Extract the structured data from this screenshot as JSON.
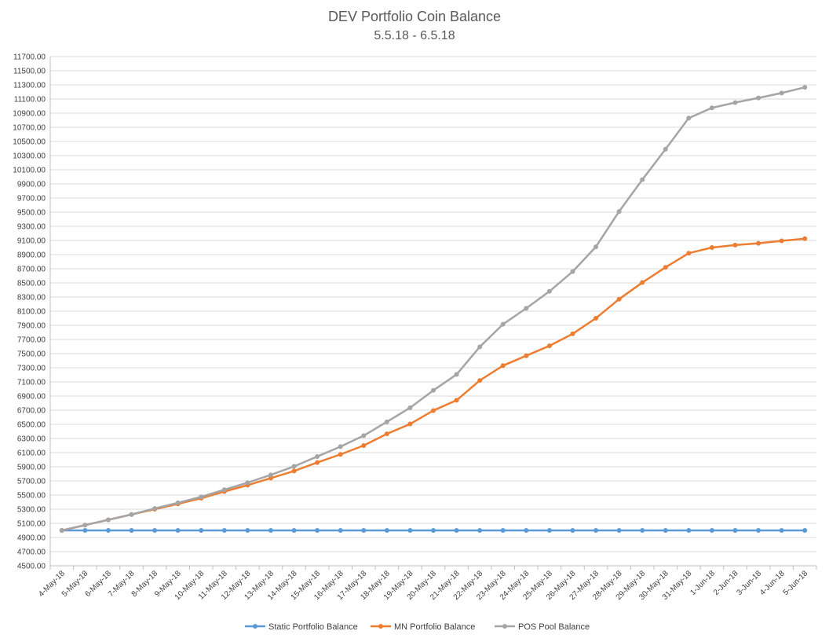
{
  "chart_data": {
    "type": "line",
    "title": "DEV Portfolio Coin Balance",
    "subtitle": "5.5.18 - 6.5.18",
    "xlabel": "",
    "ylabel": "",
    "ylim": [
      4500,
      11700
    ],
    "ytick_step": 200,
    "grid": true,
    "legend_position": "bottom",
    "categories": [
      "4-May-18",
      "5-May-18",
      "6-May-18",
      "7-May-18",
      "8-May-18",
      "9-May-18",
      "10-May-18",
      "11-May-18",
      "12-May-18",
      "13-May-18",
      "14-May-18",
      "15-May-18",
      "16-May-18",
      "17-May-18",
      "18-May-18",
      "19-May-18",
      "20-May-18",
      "21-May-18",
      "22-May-18",
      "23-May-18",
      "24-May-18",
      "25-May-18",
      "26-May-18",
      "27-May-18",
      "28-May-18",
      "29-May-18",
      "30-May-18",
      "31-May-18",
      "1-Jun-18",
      "2-Jun-18",
      "3-Jun-18",
      "4-Jun-18",
      "5-Jun-18"
    ],
    "series": [
      {
        "name": "Static Portfolio Balance",
        "color": "#5b9bd5",
        "values": [
          5000,
          5000,
          5000,
          5000,
          5000,
          5000,
          5000,
          5000,
          5000,
          5000,
          5000,
          5000,
          5000,
          5000,
          5000,
          5000,
          5000,
          5000,
          5000,
          5000,
          5000,
          5000,
          5000,
          5000,
          5000,
          5000,
          5000,
          5000,
          5000,
          5000,
          5000,
          5000,
          5000
        ]
      },
      {
        "name": "MN Portfolio Balance",
        "color": "#ed7d31",
        "values": [
          5000,
          5075,
          5150,
          5225,
          5300,
          5375,
          5455,
          5550,
          5640,
          5740,
          5840,
          5960,
          6075,
          6200,
          6365,
          6505,
          6695,
          6840,
          7120,
          7330,
          7470,
          7610,
          7780,
          8000,
          8270,
          8505,
          8720,
          8920,
          9000,
          9035,
          9060,
          9095,
          9125
        ]
      },
      {
        "name": "POS Pool Balance",
        "color": "#a5a5a5",
        "values": [
          5000,
          5075,
          5150,
          5225,
          5310,
          5390,
          5475,
          5575,
          5675,
          5785,
          5905,
          6045,
          6185,
          6340,
          6535,
          6735,
          6980,
          7205,
          7595,
          7915,
          8140,
          8380,
          8660,
          9010,
          9510,
          9960,
          10390,
          10830,
          10975,
          11050,
          11115,
          11185,
          11265
        ]
      }
    ]
  }
}
